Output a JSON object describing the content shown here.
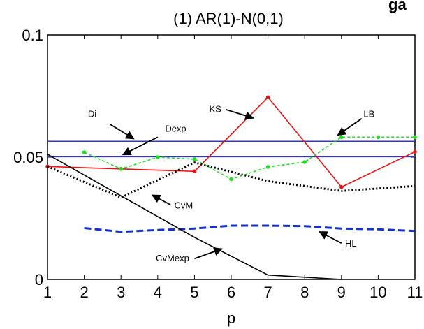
{
  "chart_data": {
    "type": "line",
    "title": "(1) AR(1)-N(0,1)",
    "title_cut": "ga",
    "xlabel": "p",
    "ylabel": "",
    "xlim": [
      1,
      11
    ],
    "ylim": [
      0,
      0.1
    ],
    "x_ticks": [
      1,
      2,
      3,
      4,
      5,
      6,
      7,
      8,
      9,
      10,
      11
    ],
    "y_ticks": [
      {
        "value": 0,
        "label": "0"
      },
      {
        "value": 0.05,
        "label": "0.05"
      },
      {
        "value": 0.1,
        "label": "0.1"
      }
    ],
    "grid": false,
    "legend": "none",
    "series": [
      {
        "name": "Di",
        "color": "#3333cc",
        "style": "solid",
        "markers": false,
        "x": [
          1,
          11
        ],
        "y": [
          0.0565,
          0.0565
        ]
      },
      {
        "name": "Dexp",
        "color": "#3333cc",
        "style": "solid",
        "markers": false,
        "x": [
          1,
          11
        ],
        "y": [
          0.0502,
          0.0502
        ]
      },
      {
        "name": "KS",
        "color": "#ee1111",
        "style": "solid",
        "markers": true,
        "x": [
          1,
          3,
          5,
          7,
          9,
          11
        ],
        "y": [
          0.0462,
          0.0452,
          0.0442,
          0.0745,
          0.0378,
          0.0522
        ]
      },
      {
        "name": "LB",
        "color": "#22dd22",
        "style": "dashed",
        "markers": true,
        "x": [
          2,
          3,
          4,
          5,
          6,
          7,
          8,
          9,
          10,
          11
        ],
        "y": [
          0.052,
          0.0452,
          0.05,
          0.0492,
          0.041,
          0.046,
          0.048,
          0.0582,
          0.0582,
          0.0582
        ]
      },
      {
        "name": "CvM",
        "color": "#000000",
        "style": "dotted",
        "markers": false,
        "x": [
          1,
          3,
          5,
          7,
          9,
          11
        ],
        "y": [
          0.0462,
          0.0335,
          0.0478,
          0.0402,
          0.0362,
          0.0382
        ]
      },
      {
        "name": "HL",
        "color": "#1133cc",
        "style": "dashed",
        "markers": false,
        "x": [
          2,
          3,
          4,
          5,
          6,
          7,
          8,
          9,
          10,
          11
        ],
        "y": [
          0.021,
          0.0195,
          0.0202,
          0.0208,
          0.022,
          0.022,
          0.0218,
          0.0208,
          0.0205,
          0.0198
        ]
      },
      {
        "name": "CvMexp",
        "color": "#000000",
        "style": "solid",
        "markers": false,
        "x": [
          1,
          3,
          5,
          7,
          9
        ],
        "y": [
          0.0512,
          0.0342,
          0.0172,
          0.0018,
          0.0
        ]
      }
    ],
    "annotations": [
      {
        "text": "Di",
        "x": 2.1,
        "y": 0.0665,
        "arrow_from": [
          2.7,
          0.0635
        ],
        "arrow_to": [
          3.35,
          0.0575
        ]
      },
      {
        "text": "Dexp",
        "x": 4.2,
        "y": 0.0605,
        "arrow_from": [
          4.0,
          0.0582
        ],
        "arrow_to": [
          3.05,
          0.051
        ]
      },
      {
        "text": "KS",
        "x": 5.4,
        "y": 0.0685,
        "arrow_from": [
          5.85,
          0.0695
        ],
        "arrow_to": [
          6.6,
          0.066
        ]
      },
      {
        "text": "LB",
        "x": 9.6,
        "y": 0.0665,
        "arrow_from": [
          9.55,
          0.0658
        ],
        "arrow_to": [
          8.9,
          0.059
        ]
      },
      {
        "text": "CvM",
        "x": 4.45,
        "y": 0.029,
        "arrow_from": [
          4.35,
          0.0305
        ],
        "arrow_to": [
          3.85,
          0.0345
        ]
      },
      {
        "text": "HL",
        "x": 9.1,
        "y": 0.0135,
        "arrow_from": [
          9.0,
          0.0148
        ],
        "arrow_to": [
          8.4,
          0.0195
        ]
      },
      {
        "text": "CvMexp",
        "x": 3.95,
        "y": 0.0075,
        "arrow_from": [
          5.0,
          0.0085
        ],
        "arrow_to": [
          5.75,
          0.0125
        ]
      }
    ]
  }
}
